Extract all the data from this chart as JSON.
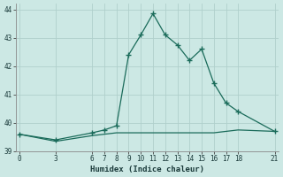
{
  "xlabel": "Humidex (Indice chaleur)",
  "background_color": "#cce8e4",
  "grid_color": "#b0d0cc",
  "line_color": "#1a6b5a",
  "xticks": [
    0,
    3,
    6,
    7,
    8,
    9,
    10,
    11,
    12,
    13,
    14,
    15,
    16,
    17,
    18,
    21
  ],
  "yticks": [
    39,
    40,
    41,
    42,
    43,
    44
  ],
  "xlim": [
    -0.3,
    21.3
  ],
  "ylim": [
    39,
    44.2
  ],
  "line1_x": [
    0,
    3,
    6,
    7,
    8,
    9,
    10,
    11,
    12,
    13,
    14,
    15,
    16,
    17,
    18,
    21
  ],
  "line1_y": [
    39.6,
    39.4,
    39.65,
    39.75,
    39.9,
    42.4,
    43.1,
    43.85,
    43.1,
    42.75,
    42.2,
    42.6,
    41.4,
    40.7,
    40.4,
    39.7
  ],
  "line2_x": [
    0,
    3,
    6,
    7,
    8,
    9,
    10,
    11,
    12,
    13,
    14,
    15,
    16,
    17,
    18,
    21
  ],
  "line2_y": [
    39.6,
    39.35,
    39.55,
    39.6,
    39.65,
    39.65,
    39.65,
    39.65,
    39.65,
    39.65,
    39.65,
    39.65,
    39.65,
    39.7,
    39.75,
    39.7
  ]
}
